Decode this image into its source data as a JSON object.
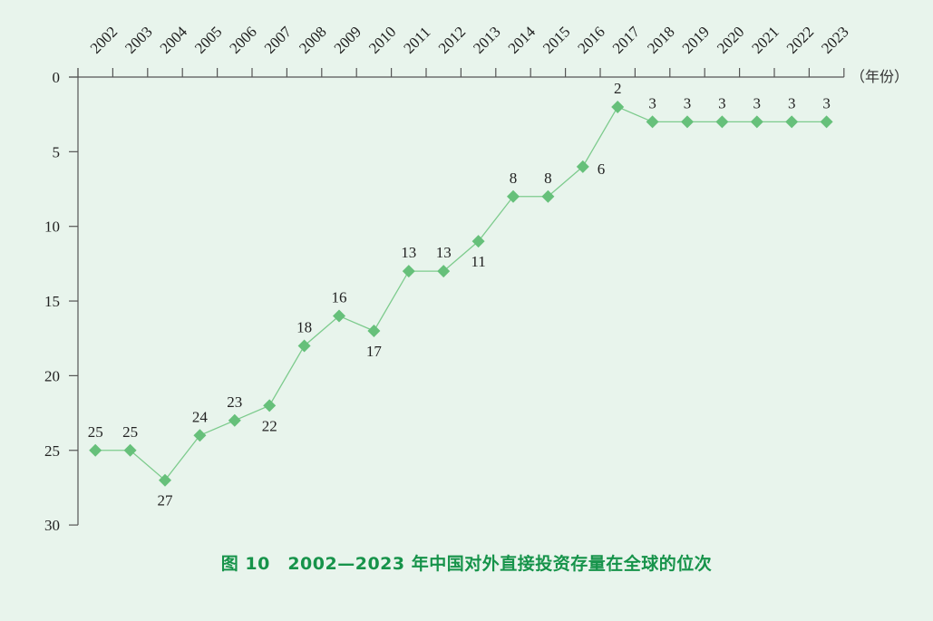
{
  "chart_data": {
    "type": "line",
    "title": "图 10　2002—2023 年中国对外直接投资存量在全球的位次",
    "xlabel": "（年份）",
    "ylabel": "",
    "categories": [
      "2002",
      "2003",
      "2004",
      "2005",
      "2006",
      "2007",
      "2008",
      "2009",
      "2010",
      "2011",
      "2012",
      "2013",
      "2014",
      "2015",
      "2016",
      "2017",
      "2018",
      "2019",
      "2020",
      "2021",
      "2022",
      "2023"
    ],
    "series": [
      {
        "name": "位次",
        "values": [
          25,
          25,
          27,
          24,
          23,
          22,
          18,
          16,
          17,
          13,
          13,
          11,
          8,
          8,
          6,
          2,
          3,
          3,
          3,
          3,
          3,
          3
        ]
      }
    ],
    "label_position": [
      "above",
      "above",
      "below",
      "above",
      "above",
      "below",
      "above",
      "above",
      "below",
      "above",
      "above",
      "below",
      "above",
      "above",
      "right",
      "above",
      "above",
      "above",
      "above",
      "above",
      "above",
      "above"
    ],
    "yticks": [
      0,
      5,
      10,
      15,
      20,
      25,
      30
    ],
    "ylim": [
      0,
      30
    ],
    "y_inverted": true,
    "x_axis_position": "top",
    "grid": false,
    "colors": {
      "line": "#7dcb8d",
      "marker": "#66c07a",
      "caption": "#16934a",
      "axis": "#555555",
      "background": "#e8f4ec"
    }
  },
  "caption": "图 10　2002—2023 年中国对外直接投资存量在全球的位次",
  "x_unit": "（年份）"
}
